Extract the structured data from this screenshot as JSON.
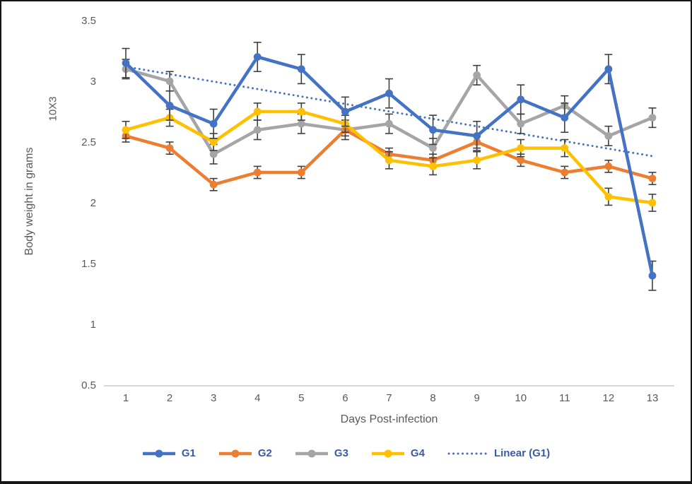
{
  "chart_data": {
    "type": "line",
    "title": "",
    "xlabel": "Days Post-infection",
    "ylabel": "Body weight in grams",
    "ylabel_unit": "10X3",
    "categories": [
      1,
      2,
      3,
      4,
      5,
      6,
      7,
      8,
      9,
      10,
      11,
      12,
      13
    ],
    "y_ticks": [
      3.5,
      3,
      2.5,
      2,
      1.5,
      1,
      0.5
    ],
    "ylim": [
      0.5,
      3.5
    ],
    "grid": false,
    "legend_position": "bottom",
    "error_bars": true,
    "colors": {
      "axis_line": "#c9c9c9",
      "tick_label": "#595959",
      "error_bar": "#3f3f3f",
      "legend_text": "#3a5bab"
    },
    "series": [
      {
        "name": "G1",
        "color": "#4472C4",
        "error": 0.12,
        "values": [
          3.15,
          2.8,
          2.65,
          3.2,
          3.1,
          2.75,
          2.9,
          2.6,
          2.55,
          2.85,
          2.7,
          3.1,
          1.4
        ]
      },
      {
        "name": "G2",
        "color": "#ED7D31",
        "error": 0.05,
        "values": [
          2.55,
          2.45,
          2.15,
          2.25,
          2.25,
          2.6,
          2.4,
          2.35,
          2.5,
          2.35,
          2.25,
          2.3,
          2.2
        ]
      },
      {
        "name": "G3",
        "color": "#A5A5A5",
        "error": 0.08,
        "values": [
          3.1,
          3.0,
          2.4,
          2.6,
          2.65,
          2.6,
          2.65,
          2.45,
          3.05,
          2.65,
          2.8,
          2.55,
          2.7
        ]
      },
      {
        "name": "G4",
        "color": "#FFC000",
        "error": 0.07,
        "values": [
          2.6,
          2.7,
          2.5,
          2.75,
          2.75,
          2.65,
          2.35,
          2.3,
          2.35,
          2.45,
          2.45,
          2.05,
          2.0
        ]
      }
    ],
    "trendline": {
      "name": "Linear (G1)",
      "for_series": "G1",
      "color": "#4472C4",
      "style": "dotted",
      "start_value": 3.12,
      "end_value": 2.38
    }
  }
}
